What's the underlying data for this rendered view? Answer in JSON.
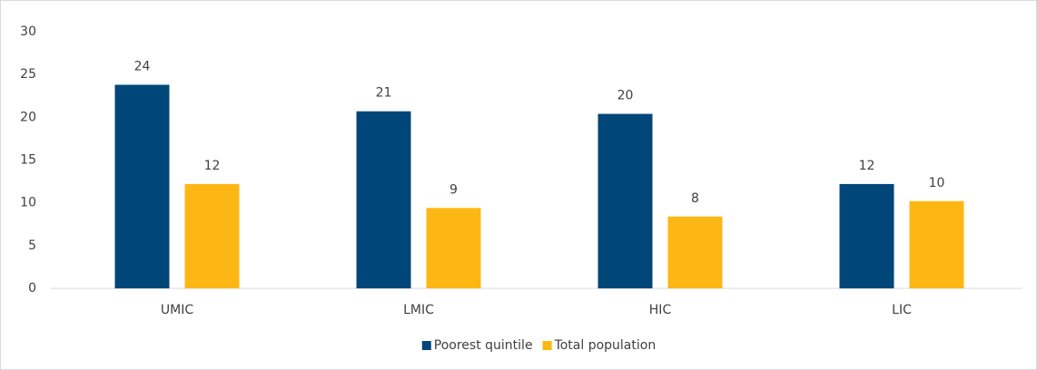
{
  "chart_data": {
    "type": "bar",
    "categories": [
      "UMIC",
      "LMIC",
      "HIC",
      "LIC"
    ],
    "series": [
      {
        "name": "Poorest quintile",
        "color": "#004678",
        "values": [
          23.8,
          20.7,
          20.4,
          12.2
        ],
        "value_labels": [
          "24",
          "21",
          "20",
          "12"
        ]
      },
      {
        "name": "Total population",
        "color": "#fdb714",
        "values": [
          12.2,
          9.4,
          8.4,
          10.2
        ],
        "value_labels": [
          "12",
          "9",
          "8",
          "10"
        ]
      }
    ],
    "ylim": [
      0,
      30
    ],
    "yticks": [
      0,
      5,
      10,
      15,
      20,
      25,
      30
    ],
    "grid": false,
    "legend": "bottom"
  }
}
